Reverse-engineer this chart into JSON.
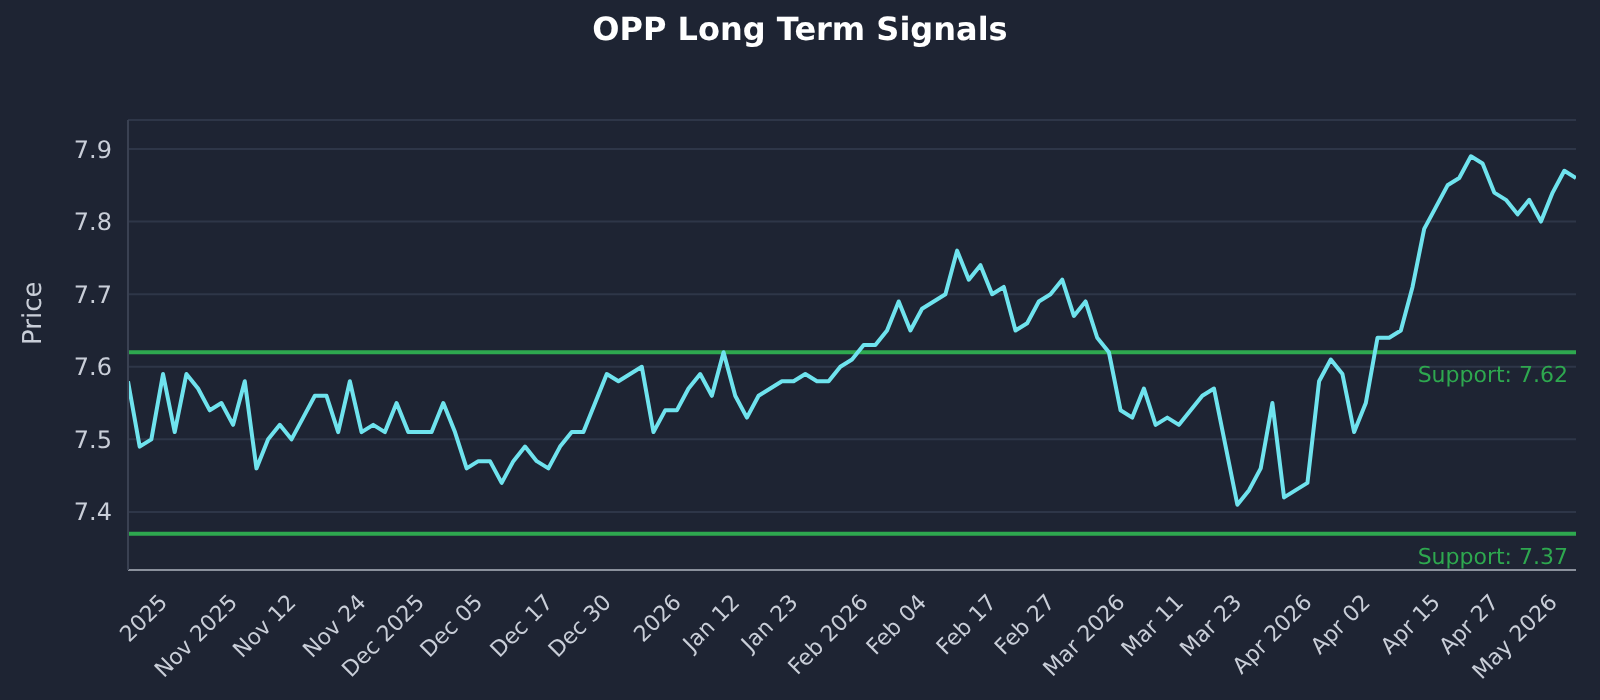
{
  "chart_data": {
    "type": "line",
    "title": "OPP Long Term Signals",
    "ylabel": "Price",
    "categories": [
      null,
      null,
      null,
      "2025",
      null,
      null,
      null,
      null,
      null,
      "Nov 2025",
      null,
      null,
      null,
      null,
      "Nov 12",
      null,
      null,
      null,
      null,
      null,
      "Nov 24",
      null,
      null,
      null,
      null,
      "Dec 2025",
      null,
      null,
      null,
      null,
      "Dec 05",
      null,
      null,
      null,
      null,
      null,
      "Dec 17",
      null,
      null,
      null,
      null,
      "Dec 30",
      null,
      null,
      null,
      null,
      null,
      "2026",
      null,
      null,
      null,
      null,
      "Jan 12",
      null,
      null,
      null,
      null,
      "Jan 23",
      null,
      null,
      null,
      null,
      null,
      "Feb 2026",
      null,
      null,
      null,
      null,
      "Feb 04",
      null,
      null,
      null,
      null,
      null,
      "Feb 17",
      null,
      null,
      null,
      null,
      "Feb 27",
      null,
      null,
      null,
      null,
      null,
      "Mar 2026",
      null,
      null,
      null,
      null,
      "Mar 11",
      null,
      null,
      null,
      null,
      "Mar 23",
      null,
      null,
      null,
      null,
      null,
      "Apr 2026",
      null,
      null,
      null,
      null,
      "Apr 02",
      null,
      null,
      null,
      null,
      null,
      "Apr 15",
      null,
      null,
      null,
      null,
      "Apr 27",
      null,
      null,
      null,
      null,
      "May 2026",
      null,
      null
    ],
    "series": [
      {
        "color": "#6fe3ee",
        "values": [
          7.58,
          7.49,
          7.5,
          7.59,
          7.51,
          7.59,
          7.57,
          7.54,
          7.55,
          7.52,
          7.58,
          7.46,
          7.5,
          7.52,
          7.5,
          7.53,
          7.56,
          7.56,
          7.51,
          7.58,
          7.51,
          7.52,
          7.51,
          7.55,
          7.51,
          7.51,
          7.51,
          7.55,
          7.51,
          7.46,
          7.47,
          7.47,
          7.44,
          7.47,
          7.49,
          7.47,
          7.46,
          7.49,
          7.51,
          7.51,
          7.55,
          7.59,
          7.58,
          7.59,
          7.6,
          7.51,
          7.54,
          7.54,
          7.57,
          7.59,
          7.56,
          7.62,
          7.56,
          7.53,
          7.56,
          7.57,
          7.58,
          7.58,
          7.59,
          7.58,
          7.58,
          7.6,
          7.61,
          7.63,
          7.63,
          7.65,
          7.69,
          7.65,
          7.68,
          7.69,
          7.7,
          7.76,
          7.72,
          7.74,
          7.7,
          7.71,
          7.65,
          7.66,
          7.69,
          7.7,
          7.72,
          7.67,
          7.69,
          7.64,
          7.62,
          7.54,
          7.53,
          7.57,
          7.52,
          7.53,
          7.52,
          7.54,
          7.56,
          7.57,
          7.49,
          7.41,
          7.43,
          7.46,
          7.55,
          7.42,
          7.43,
          7.44,
          7.58,
          7.61,
          7.59,
          7.51,
          7.55,
          7.64,
          7.64,
          7.65,
          7.71,
          7.79,
          7.82,
          7.85,
          7.86,
          7.89,
          7.88,
          7.84,
          7.83,
          7.81,
          7.83,
          7.8,
          7.84,
          7.87,
          7.86
        ]
      }
    ],
    "ylim": [
      7.32,
      7.94
    ],
    "yticks": [
      7.4,
      7.5,
      7.6,
      7.7,
      7.8,
      7.9
    ],
    "grid": "y",
    "legend": false,
    "marker": "none",
    "line_style": "solid",
    "ref_lines": [
      {
        "axis": "y",
        "value": 7.62,
        "label": "Support: 7.62",
        "color": "#2ea84f"
      },
      {
        "axis": "y",
        "value": 7.37,
        "label": "Support: 7.37",
        "color": "#2ea84f"
      }
    ]
  }
}
